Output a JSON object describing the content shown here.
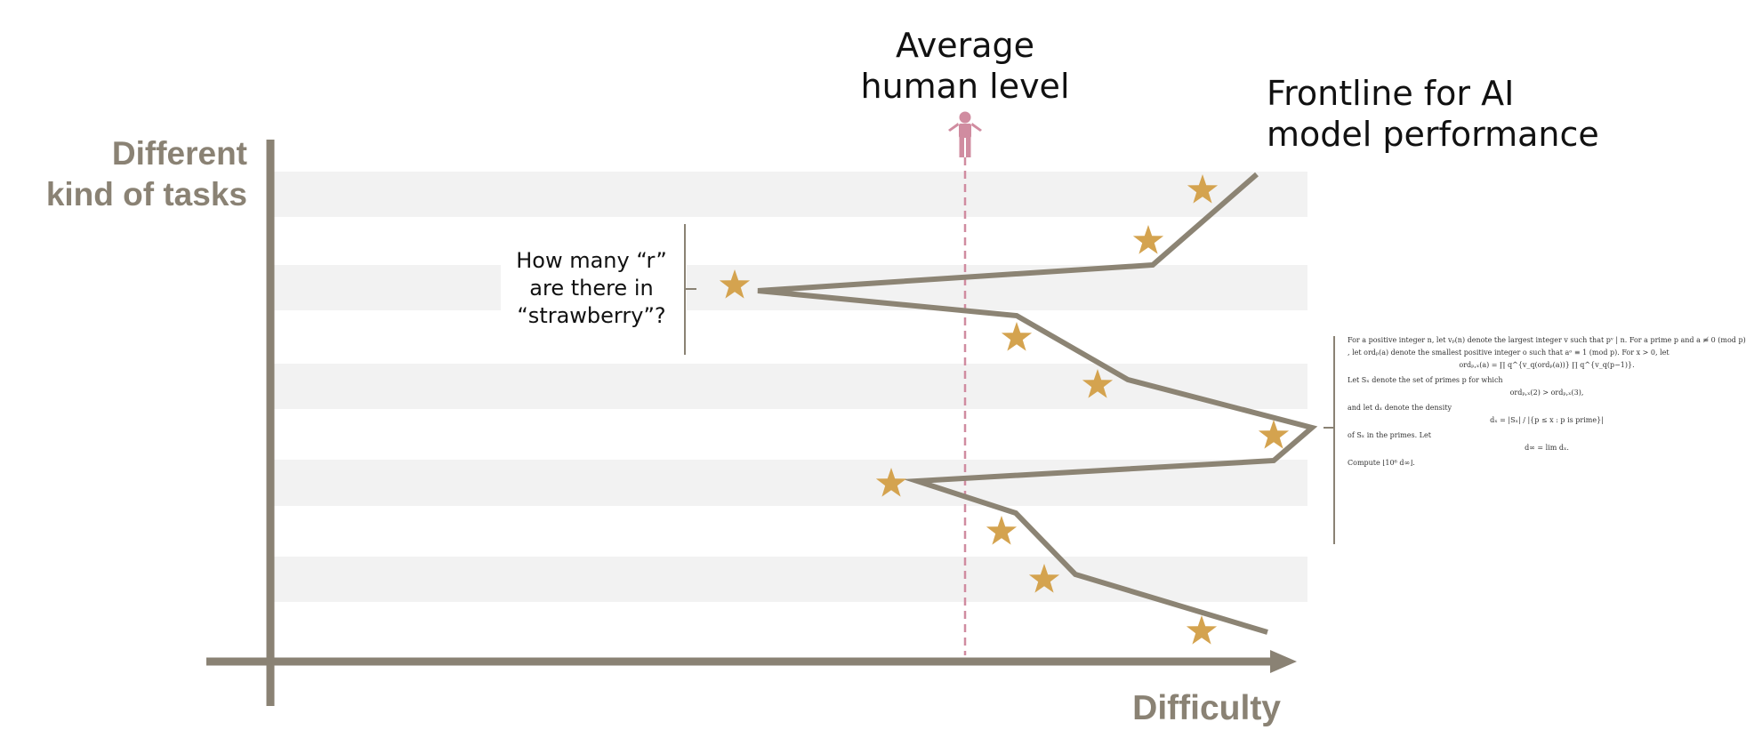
{
  "labels": {
    "y_axis": "Different\nkind of tasks",
    "x_axis": "Difficulty",
    "human_level": "Average\nhuman level",
    "frontline": "Frontline for AI\nmodel performance",
    "callout_question": "How many “r”\nare there in\n“strawberry”?"
  },
  "icons": {
    "human": "person-icon",
    "task": "star-icon"
  },
  "colors": {
    "axis": "#8a8274",
    "frontline": "#8c8474",
    "star": "#d4a34f",
    "human": "#d08ca0",
    "band": "#f2f2f2"
  },
  "math_problem": {
    "p1": "For a positive integer n, let vₚ(n) denote the largest integer v such that pᵛ | n. For a prime p and a ≢ 0 (mod p)",
    "p2": ", let ordₚ(a) denote the smallest positive integer o such that aᵒ ≡ 1 (mod p). For x > 0, let",
    "f1": "ordₚ,ₓ(a) = ∏ q^{v_q(ordₚ(a))} ∏ q^{v_q(p−1)}.",
    "p3": "Let Sₓ denote the set of primes p for which",
    "f2": "ordₚ,ₓ(2) > ordₚ,ₓ(3),",
    "p4": "and let dₓ denote the density",
    "f3": "dₓ = |Sₓ| / |{p ≤ x : p is prime}|",
    "p5": "of Sₓ in the primes. Let",
    "f4": "d∞ = lim dₓ.",
    "p6": "Compute ⌊10⁶ d∞⌋."
  }
}
